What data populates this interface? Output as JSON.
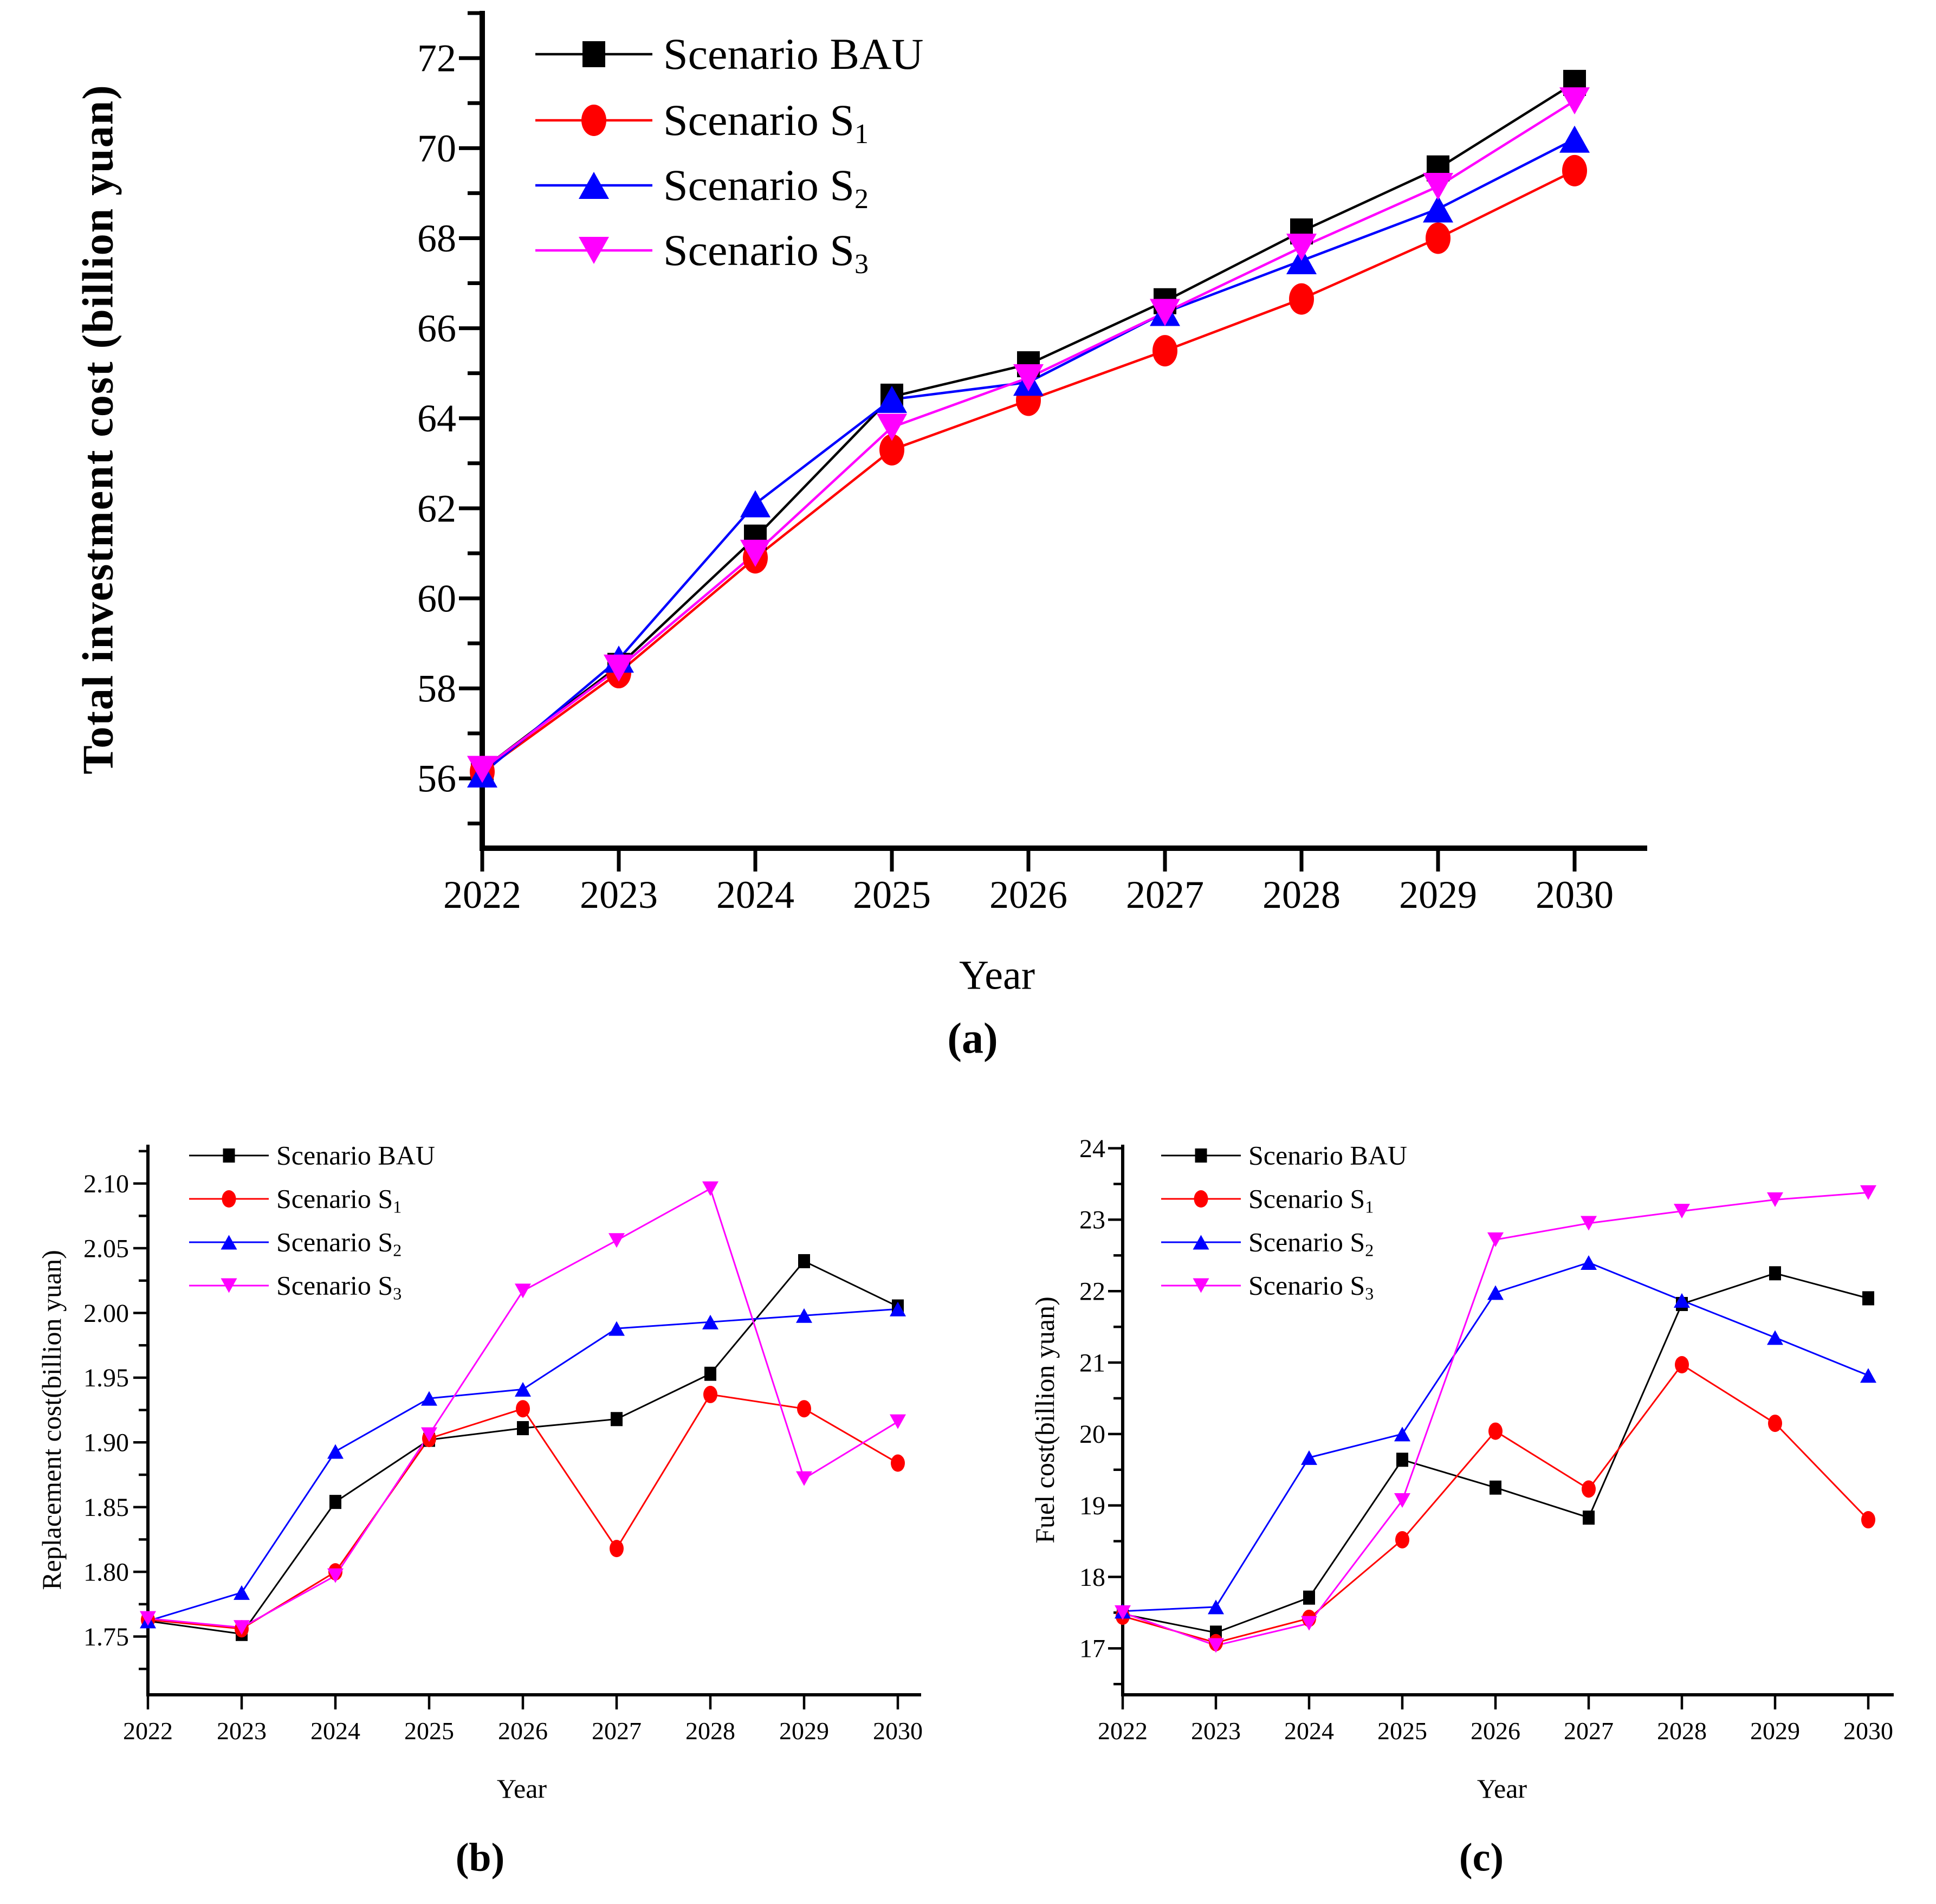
{
  "page": {
    "background": "#ffffff"
  },
  "chart_data": [
    {
      "id": "a",
      "type": "line",
      "title": "",
      "panel_label": "(a)",
      "xlabel": "Year",
      "ylabel": "Total investment cost (billion yuan)",
      "x_labels": [
        "2022",
        "2023",
        "2024",
        "2025",
        "2026",
        "2027",
        "2028",
        "2029",
        "2030"
      ],
      "ylim": [
        54.45,
        73.05
      ],
      "yticks": [
        56,
        58,
        60,
        62,
        64,
        66,
        68,
        70,
        72
      ],
      "ytick_labels": [
        "56",
        "58",
        "60",
        "62",
        "64",
        "66",
        "68",
        "70",
        "72"
      ],
      "minor_tick_step": 1,
      "grid": false,
      "legend_position": "top-left",
      "series": [
        {
          "name": "Scenario BAU",
          "sub": "",
          "color": "#000000",
          "marker": "square",
          "values": [
            56.2,
            58.5,
            61.35,
            64.48,
            65.2,
            66.6,
            68.15,
            69.55,
            71.45
          ]
        },
        {
          "name": "Scenario S",
          "sub": "1",
          "color": "#ff0000",
          "marker": "circle",
          "values": [
            56.15,
            58.35,
            60.9,
            63.3,
            64.4,
            65.5,
            66.65,
            68.0,
            69.5
          ]
        },
        {
          "name": "Scenario S",
          "sub": "2",
          "color": "#0000ff",
          "marker": "triangle-up",
          "values": [
            56.1,
            58.65,
            62.1,
            64.42,
            64.8,
            66.35,
            67.5,
            68.65,
            70.2
          ]
        },
        {
          "name": "Scenario S",
          "sub": "3",
          "color": "#ff00ff",
          "marker": "triangle-down",
          "values": [
            56.2,
            58.45,
            61.0,
            63.8,
            64.9,
            66.35,
            67.8,
            69.15,
            71.05
          ]
        }
      ]
    },
    {
      "id": "b",
      "type": "line",
      "title": "",
      "panel_label": "(b)",
      "xlabel": "Year",
      "ylabel": "Replacement cost(billion yuan)",
      "x_labels": [
        "2022",
        "2023",
        "2024",
        "2025",
        "2026",
        "2027",
        "2028",
        "2029",
        "2030"
      ],
      "ylim": [
        1.705,
        2.13
      ],
      "yticks": [
        1.75,
        1.8,
        1.85,
        1.9,
        1.95,
        2.0,
        2.05,
        2.1
      ],
      "ytick_labels": [
        "1.75",
        "1.80",
        "1.85",
        "1.90",
        "1.95",
        "2.00",
        "2.05",
        "2.10"
      ],
      "minor_tick_step": 0.025,
      "grid": false,
      "legend_position": "top-left",
      "series": [
        {
          "name": "Scenario BAU",
          "sub": "",
          "color": "#000000",
          "marker": "square",
          "values": [
            1.762,
            1.752,
            1.854,
            1.902,
            1.911,
            1.918,
            1.953,
            2.04,
            2.005
          ]
        },
        {
          "name": "Scenario S",
          "sub": "1",
          "color": "#ff0000",
          "marker": "circle",
          "values": [
            1.763,
            1.756,
            1.8,
            1.903,
            1.926,
            1.818,
            1.937,
            1.926,
            1.884
          ]
        },
        {
          "name": "Scenario S",
          "sub": "2",
          "color": "#0000ff",
          "marker": "triangle-up",
          "values": [
            1.762,
            1.784,
            1.893,
            1.934,
            1.941,
            1.988,
            1.993,
            1.998,
            2.003
          ]
        },
        {
          "name": "Scenario S",
          "sub": "3",
          "color": "#ff00ff",
          "marker": "triangle-down",
          "values": [
            1.764,
            1.757,
            1.797,
            1.906,
            2.017,
            2.056,
            2.096,
            1.872,
            1.916
          ]
        }
      ]
    },
    {
      "id": "c",
      "type": "line",
      "title": "",
      "panel_label": "(c)",
      "xlabel": "Year",
      "ylabel": "Fuel cost(billion yuan)",
      "x_labels": [
        "2022",
        "2023",
        "2024",
        "2025",
        "2026",
        "2027",
        "2028",
        "2029",
        "2030"
      ],
      "ylim": [
        16.35,
        24.05
      ],
      "yticks": [
        17,
        18,
        19,
        20,
        21,
        22,
        23,
        24
      ],
      "ytick_labels": [
        "17",
        "18",
        "19",
        "20",
        "21",
        "22",
        "23",
        "24"
      ],
      "minor_tick_step": 0.5,
      "grid": false,
      "legend_position": "top-left",
      "series": [
        {
          "name": "Scenario BAU",
          "sub": "",
          "color": "#000000",
          "marker": "square",
          "values": [
            17.48,
            17.22,
            17.71,
            19.64,
            19.25,
            18.83,
            21.82,
            22.25,
            21.9
          ]
        },
        {
          "name": "Scenario S",
          "sub": "1",
          "color": "#ff0000",
          "marker": "circle",
          "values": [
            17.45,
            17.08,
            17.42,
            18.52,
            20.04,
            19.23,
            20.97,
            20.15,
            18.8
          ]
        },
        {
          "name": "Scenario S",
          "sub": "2",
          "color": "#0000ff",
          "marker": "triangle-up",
          "values": [
            17.52,
            17.58,
            19.67,
            20.0,
            21.98,
            22.4,
            21.87,
            21.35,
            20.82
          ]
        },
        {
          "name": "Scenario S",
          "sub": "3",
          "color": "#ff00ff",
          "marker": "triangle-down",
          "values": [
            17.5,
            17.04,
            17.35,
            19.07,
            22.72,
            22.95,
            23.12,
            23.28,
            23.38
          ]
        }
      ]
    }
  ]
}
